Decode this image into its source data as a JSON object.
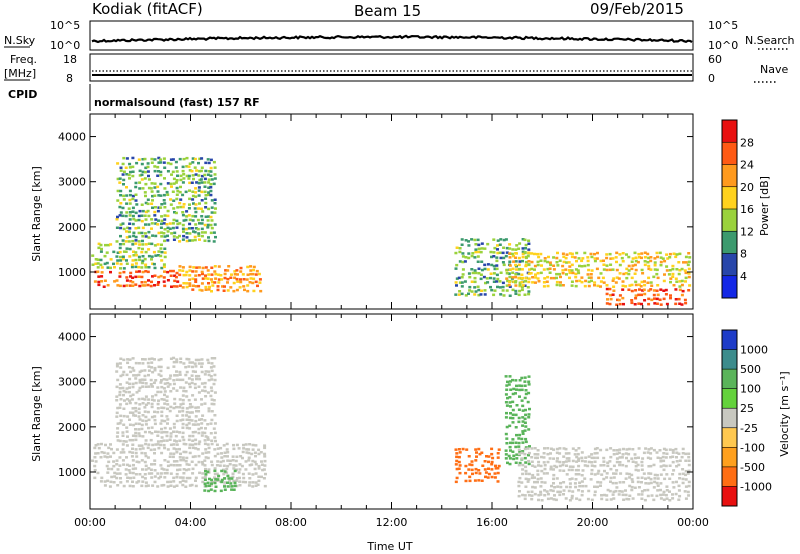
{
  "header": {
    "station": "Kodiak (fitACF)",
    "beam": "Beam 15",
    "date": "09/Feb/2015"
  },
  "top_panels": {
    "nsky_label": "N.Sky",
    "nsearch_label": "N.Search",
    "nsky_ticks": [
      "10^5",
      "10^0"
    ],
    "nsearch_ticks": [
      "10^5",
      "10^0"
    ],
    "freq_label_1": "Freq.",
    "freq_label_2": "[MHz]",
    "freq_ticks": [
      "18",
      "8"
    ],
    "nave_label": "Nave",
    "nave_ticks": [
      "60",
      "0"
    ],
    "cpid_label": "CPID",
    "cpid_value": "normalsound (fast) 157 RF"
  },
  "chart_data": [
    {
      "type": "heatmap",
      "panel": "power",
      "xlabel": "",
      "ylabel": "Slant Range [km]",
      "colorbar_label": "Power [dB]",
      "ylim": [
        180,
        4500
      ],
      "xlim_hours": [
        0,
        24
      ],
      "x_ticks": [
        "00:00",
        "04:00",
        "08:00",
        "12:00",
        "16:00",
        "20:00",
        "00:00"
      ],
      "y_ticks": [
        1000,
        2000,
        3000,
        4000
      ],
      "colorbar_ticks": [
        28,
        24,
        20,
        16,
        12,
        8,
        4
      ],
      "colorbar_colors": [
        "#e81010",
        "#ff5a14",
        "#ff9a1e",
        "#ffd21e",
        "#9ad23c",
        "#3c9a6e",
        "#2846aa",
        "#1428e6"
      ],
      "regions": [
        {
          "t0": 0.0,
          "t1": 3.5,
          "r0": 700,
          "r1": 1100,
          "level": 26
        },
        {
          "t0": 0.0,
          "t1": 3.0,
          "r0": 1100,
          "r1": 1700,
          "level": 14
        },
        {
          "t0": 1.0,
          "t1": 5.0,
          "r0": 1700,
          "r1": 3600,
          "level": 12
        },
        {
          "t0": 3.5,
          "t1": 6.8,
          "r0": 600,
          "r1": 1200,
          "level": 22
        },
        {
          "t0": 14.5,
          "t1": 17.5,
          "r0": 500,
          "r1": 1800,
          "level": 12
        },
        {
          "t0": 16.5,
          "t1": 24.0,
          "r0": 700,
          "r1": 1500,
          "level": 18
        },
        {
          "t0": 20.5,
          "t1": 24.0,
          "r0": 300,
          "r1": 700,
          "level": 26
        }
      ]
    },
    {
      "type": "heatmap",
      "panel": "velocity",
      "xlabel": "Time UT",
      "ylabel": "Slant Range [km]",
      "colorbar_label": "Velocity [m s⁻¹]",
      "ylim": [
        180,
        4500
      ],
      "xlim_hours": [
        0,
        24
      ],
      "x_ticks": [
        "00:00",
        "04:00",
        "08:00",
        "12:00",
        "16:00",
        "20:00",
        "00:00"
      ],
      "y_ticks": [
        1000,
        2000,
        3000,
        4000
      ],
      "colorbar_ticks": [
        1000,
        500,
        100,
        25,
        -25,
        -100,
        -500,
        -1000
      ],
      "colorbar_colors": [
        "#1e3cc8",
        "#3c8c8c",
        "#5ab45a",
        "#64d23c",
        "#c8c8c0",
        "#ffc850",
        "#ffa01e",
        "#ff6e14",
        "#e81010"
      ],
      "regions": [
        {
          "t0": 0.0,
          "t1": 7.0,
          "r0": 700,
          "r1": 1700,
          "velocity": 0
        },
        {
          "t0": 1.0,
          "t1": 5.0,
          "r0": 1700,
          "r1": 3600,
          "velocity": 0
        },
        {
          "t0": 4.5,
          "t1": 5.8,
          "r0": 600,
          "r1": 1100,
          "velocity": 150
        },
        {
          "t0": 14.5,
          "t1": 16.3,
          "r0": 800,
          "r1": 1600,
          "velocity": -400
        },
        {
          "t0": 16.5,
          "t1": 17.5,
          "r0": 1200,
          "r1": 3200,
          "velocity": 150
        },
        {
          "t0": 17.0,
          "t1": 24.0,
          "r0": 400,
          "r1": 1600,
          "velocity": 0
        }
      ]
    }
  ]
}
